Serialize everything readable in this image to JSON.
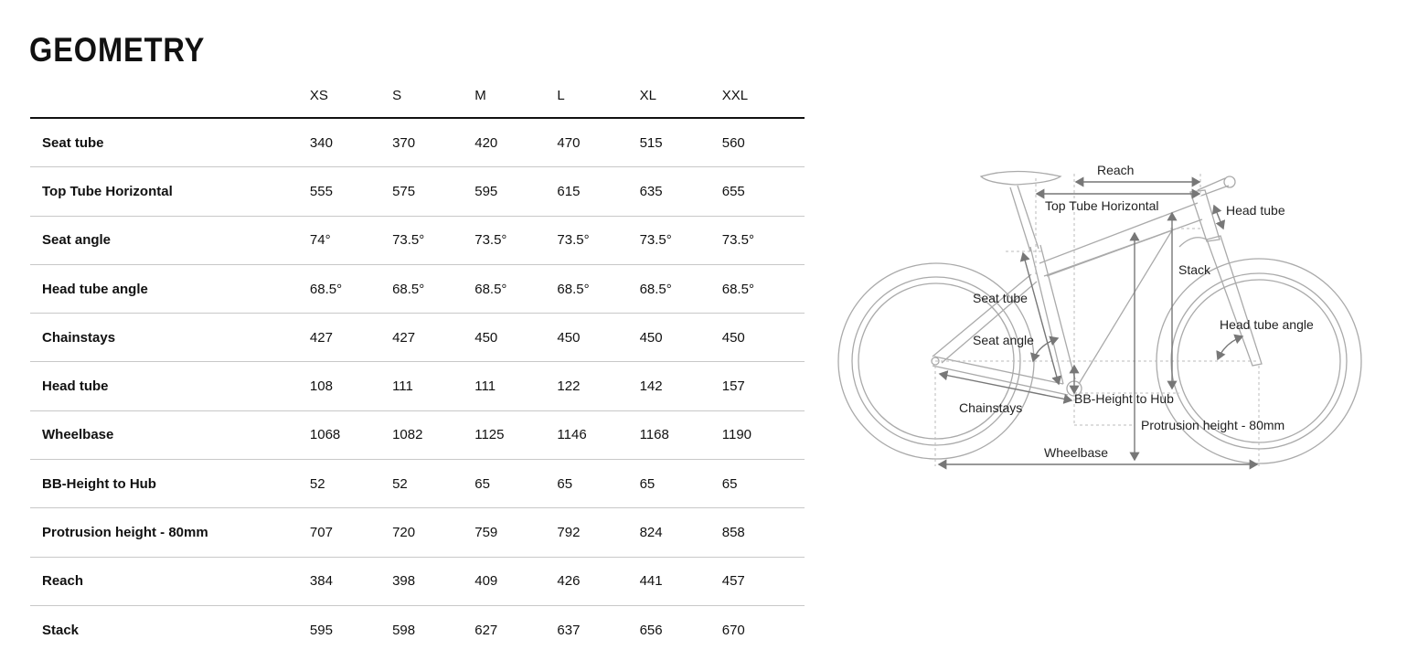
{
  "page": {
    "title": "GEOMETRY"
  },
  "table": {
    "sizes": [
      "XS",
      "S",
      "M",
      "L",
      "XL",
      "XXL"
    ],
    "rows": [
      {
        "label": "Seat tube",
        "values": [
          "340",
          "370",
          "420",
          "470",
          "515",
          "560"
        ]
      },
      {
        "label": "Top Tube Horizontal",
        "values": [
          "555",
          "575",
          "595",
          "615",
          "635",
          "655"
        ]
      },
      {
        "label": "Seat angle",
        "values": [
          "74°",
          "73.5°",
          "73.5°",
          "73.5°",
          "73.5°",
          "73.5°"
        ]
      },
      {
        "label": "Head tube angle",
        "values": [
          "68.5°",
          "68.5°",
          "68.5°",
          "68.5°",
          "68.5°",
          "68.5°"
        ]
      },
      {
        "label": "Chainstays",
        "values": [
          "427",
          "427",
          "450",
          "450",
          "450",
          "450"
        ]
      },
      {
        "label": "Head tube",
        "values": [
          "108",
          "111",
          "111",
          "122",
          "142",
          "157"
        ]
      },
      {
        "label": "Wheelbase",
        "values": [
          "1068",
          "1082",
          "1125",
          "1146",
          "1168",
          "1190"
        ]
      },
      {
        "label": "BB-Height to Hub",
        "values": [
          "52",
          "52",
          "65",
          "65",
          "65",
          "65"
        ]
      },
      {
        "label": "Protrusion height - 80mm",
        "values": [
          "707",
          "720",
          "759",
          "792",
          "824",
          "858"
        ]
      },
      {
        "label": "Reach",
        "values": [
          "384",
          "398",
          "409",
          "426",
          "441",
          "457"
        ]
      },
      {
        "label": "Stack",
        "values": [
          "595",
          "598",
          "627",
          "637",
          "656",
          "670"
        ]
      }
    ]
  },
  "diagram": {
    "labels": {
      "reach": "Reach",
      "top_tube": "Top Tube Horizontal",
      "head_tube": "Head tube",
      "stack": "Stack",
      "seat_tube": "Seat tube",
      "head_tube_angle": "Head tube angle",
      "seat_angle": "Seat angle",
      "bb_height": "BB-Height to Hub",
      "chainstays": "Chainstays",
      "protrusion": "Protrusion height - 80mm",
      "wheelbase": "Wheelbase"
    }
  }
}
